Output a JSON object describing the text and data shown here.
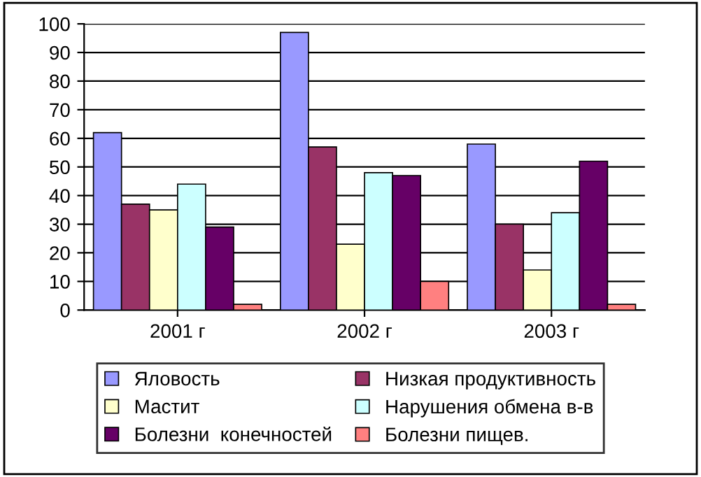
{
  "chart_data": {
    "type": "bar",
    "categories": [
      "2001 г",
      "2002 г",
      "2003 г"
    ],
    "series": [
      {
        "name": "Яловость",
        "color": "#9999ff",
        "values": [
          62,
          97,
          58
        ]
      },
      {
        "name": "Низкая продуктивность",
        "color": "#993366",
        "values": [
          37,
          57,
          30
        ]
      },
      {
        "name": "Мастит",
        "color": "#ffffcc",
        "values": [
          35,
          23,
          14
        ]
      },
      {
        "name": "Нарушения обмена в-в",
        "color": "#ccffff",
        "values": [
          44,
          48,
          34
        ]
      },
      {
        "name": "Болезни  конечностей",
        "color": "#660066",
        "values": [
          29,
          47,
          52
        ]
      },
      {
        "name": "Болезни пищев.",
        "color": "#ff8080",
        "values": [
          2,
          10,
          2
        ]
      }
    ],
    "ylim": [
      0,
      100
    ],
    "yticks": [
      0,
      10,
      20,
      30,
      40,
      50,
      60,
      70,
      80,
      90,
      100
    ],
    "grid": "y",
    "legend": "bottom"
  }
}
